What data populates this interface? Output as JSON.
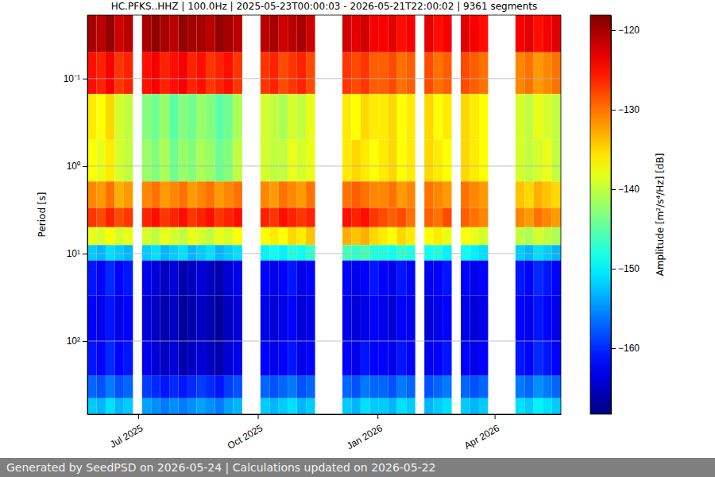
{
  "chart_data": {
    "type": "heatmap",
    "title": "HC.PFKS..HHZ | 100.0Hz | 2025-05-23T00:00:03 - 2026-05-21T22:00:02 | 9361 segments",
    "ylabel": "Period [s]",
    "footer": "Generated by SeedPSD on 2026-05-24 | Calculations updated on 2026-05-22",
    "log": "y",
    "grid": "y",
    "xlim": [
      "2025-05-23T00:00:03",
      "2026-05-21T22:00:02"
    ],
    "xticks": [
      {
        "value": "2025-07-01",
        "label": "Jul 2025"
      },
      {
        "value": "2025-10-01",
        "label": "Oct 2025"
      },
      {
        "value": "2026-01-01",
        "label": "Jan 2026"
      },
      {
        "value": "2026-04-01",
        "label": "Apr 2026"
      }
    ],
    "ylim": [
      0.0188,
      686
    ],
    "yticks": [
      {
        "value": 0.1,
        "label": "10⁻¹"
      },
      {
        "value": 1,
        "label": "10⁰"
      },
      {
        "value": 10,
        "label": "10¹"
      },
      {
        "value": 100,
        "label": "10²"
      }
    ],
    "time_bins": [
      "2025-05-23T00:00:03",
      "2025-05-30",
      "2025-06-06",
      "2025-06-13",
      "2025-06-20",
      "2025-06-27",
      "2025-07-04",
      "2025-07-11",
      "2025-07-18",
      "2025-07-25",
      "2025-08-01",
      "2025-08-08",
      "2025-08-15",
      "2025-08-22",
      "2025-08-29",
      "2025-09-05",
      "2025-09-12",
      "2025-09-19",
      "2025-09-26",
      "2025-10-03",
      "2025-10-10",
      "2025-10-17",
      "2025-10-24",
      "2025-10-31",
      "2025-11-07",
      "2025-11-14",
      "2025-11-21",
      "2025-11-28",
      "2025-12-05",
      "2025-12-12",
      "2025-12-19",
      "2025-12-26",
      "2026-01-02",
      "2026-01-09",
      "2026-01-16",
      "2026-01-23",
      "2026-01-30",
      "2026-02-06",
      "2026-02-13",
      "2026-02-20",
      "2026-02-27",
      "2026-03-06",
      "2026-03-13",
      "2026-03-20",
      "2026-03-27",
      "2026-04-03",
      "2026-04-10",
      "2026-04-17",
      "2026-04-24",
      "2026-05-01",
      "2026-05-08",
      "2026-05-15",
      "2026-05-21T22:00:02"
    ],
    "period_bins": [
      0.0188,
      0.05,
      0.15,
      0.5,
      1.5,
      3,
      5,
      8,
      12,
      30,
      100,
      250,
      450,
      686
    ],
    "values": [
      [
        -120,
        -121,
        -119,
        -122,
        -121,
        null,
        -120,
        -119,
        -120,
        -121,
        -119,
        -120,
        -120,
        -121,
        -119,
        -120,
        -121,
        null,
        null,
        -121,
        -120,
        -122,
        -121,
        -120,
        -122,
        null,
        null,
        null,
        -122,
        -123,
        -122,
        -124,
        -124,
        -123,
        -125,
        -124,
        null,
        -123,
        -125,
        -124,
        null,
        -123,
        -124,
        -125,
        null,
        null,
        null,
        -124,
        -123,
        -125,
        -124,
        -123
      ],
      [
        -125,
        -126,
        -124,
        -127,
        -126,
        null,
        -125,
        -124,
        -126,
        -125,
        -124,
        -126,
        -125,
        -127,
        -126,
        -125,
        -127,
        null,
        null,
        -127,
        -126,
        -128,
        -127,
        -126,
        -128,
        null,
        null,
        null,
        -127,
        -128,
        -127,
        -129,
        -129,
        -128,
        -130,
        -129,
        null,
        -128,
        -130,
        -129,
        null,
        -128,
        -129,
        -130,
        null,
        null,
        null,
        -131,
        -130,
        -132,
        -131,
        -130
      ],
      [
        -136,
        -137,
        -135,
        -139,
        -140,
        null,
        -143,
        -144,
        -142,
        -145,
        -143,
        -144,
        -142,
        -143,
        -145,
        -144,
        -141,
        null,
        null,
        -139,
        -140,
        -141,
        -139,
        -140,
        -138,
        null,
        null,
        null,
        -136,
        -137,
        -135,
        -136,
        -136,
        -135,
        -137,
        -136,
        null,
        -135,
        -137,
        -136,
        null,
        -135,
        -136,
        -137,
        null,
        null,
        null,
        -139,
        -140,
        -138,
        -139,
        -140
      ],
      [
        -137,
        -138,
        -136,
        -139,
        -140,
        null,
        -142,
        -143,
        -141,
        -144,
        -142,
        -143,
        -141,
        -142,
        -144,
        -143,
        -140,
        null,
        null,
        -139,
        -140,
        -140,
        -138,
        -139,
        -138,
        null,
        null,
        null,
        -136,
        -135,
        -136,
        -137,
        -136,
        -135,
        -137,
        -136,
        null,
        -135,
        -136,
        -137,
        null,
        -135,
        -136,
        -137,
        null,
        null,
        null,
        -139,
        -140,
        -139,
        -138,
        -140
      ],
      [
        -131,
        -132,
        -130,
        -133,
        -132,
        null,
        -131,
        -130,
        -132,
        -131,
        -130,
        -132,
        -131,
        -130,
        -132,
        -131,
        -130,
        null,
        null,
        -131,
        -132,
        -130,
        -131,
        -132,
        -130,
        null,
        null,
        null,
        -130,
        -129,
        -130,
        -131,
        -131,
        -130,
        -132,
        -131,
        null,
        -130,
        -131,
        -132,
        null,
        -130,
        -131,
        -132,
        null,
        null,
        null,
        -134,
        -135,
        -133,
        -134,
        -135
      ],
      [
        -127,
        -128,
        -126,
        -128,
        -127,
        null,
        -126,
        -125,
        -127,
        -126,
        -125,
        -127,
        -126,
        -125,
        -127,
        -126,
        -125,
        null,
        null,
        -126,
        -127,
        -125,
        -126,
        -127,
        -126,
        null,
        null,
        null,
        -125,
        -126,
        -125,
        -127,
        -128,
        -129,
        -128,
        -130,
        null,
        -129,
        -130,
        -128,
        null,
        -129,
        -130,
        -131,
        null,
        null,
        null,
        -131,
        -132,
        -130,
        -131,
        -132
      ],
      [
        -138,
        -139,
        -137,
        -139,
        -138,
        null,
        -139,
        -140,
        -138,
        -139,
        -140,
        -138,
        -139,
        -140,
        -138,
        -139,
        -137,
        null,
        null,
        -137,
        -136,
        -137,
        -135,
        -136,
        -134,
        null,
        null,
        null,
        -133,
        -134,
        -133,
        -135,
        -136,
        -137,
        -135,
        -136,
        null,
        -137,
        -136,
        -138,
        null,
        -137,
        -138,
        -139,
        null,
        null,
        null,
        -140,
        -141,
        -139,
        -140,
        -141
      ],
      [
        -152,
        -153,
        -151,
        -152,
        -153,
        null,
        -152,
        -151,
        -153,
        -152,
        -151,
        -153,
        -152,
        -151,
        -153,
        -152,
        -151,
        null,
        null,
        -150,
        -149,
        -150,
        -148,
        -149,
        -147,
        null,
        null,
        null,
        -146,
        -147,
        -146,
        -148,
        -148,
        -149,
        -147,
        -148,
        null,
        -149,
        -148,
        -150,
        null,
        -149,
        -150,
        -151,
        null,
        null,
        null,
        -152,
        -153,
        -151,
        -152,
        -153
      ],
      [
        -161,
        -162,
        -160,
        -162,
        -161,
        null,
        -163,
        -164,
        -165,
        -164,
        -166,
        -165,
        -164,
        -165,
        -166,
        -164,
        -163,
        null,
        null,
        -162,
        -163,
        -162,
        -161,
        -163,
        -162,
        null,
        null,
        null,
        -162,
        -163,
        -162,
        -161,
        -162,
        -163,
        -161,
        -162,
        null,
        -163,
        -162,
        -161,
        null,
        -162,
        -163,
        -162,
        null,
        null,
        null,
        -161,
        -162,
        -160,
        -161,
        -162
      ],
      [
        -162,
        -163,
        -161,
        -163,
        -162,
        null,
        -164,
        -165,
        -166,
        -165,
        -167,
        -166,
        -165,
        -166,
        -167,
        -165,
        -164,
        null,
        null,
        -163,
        -164,
        -163,
        -162,
        -164,
        -163,
        null,
        null,
        null,
        -163,
        -164,
        -163,
        -162,
        -163,
        -164,
        -162,
        -163,
        null,
        -164,
        -163,
        -162,
        null,
        -163,
        -164,
        -163,
        null,
        null,
        null,
        -162,
        -163,
        -161,
        -162,
        -163
      ],
      [
        -161,
        -162,
        -160,
        -162,
        -161,
        null,
        -163,
        -164,
        -165,
        -164,
        -166,
        -165,
        -164,
        -165,
        -166,
        -164,
        -163,
        null,
        null,
        -162,
        -163,
        -162,
        -161,
        -163,
        -162,
        null,
        null,
        null,
        -162,
        -163,
        -161,
        -162,
        -162,
        -163,
        -161,
        -162,
        null,
        -163,
        -162,
        -161,
        null,
        -162,
        -163,
        -162,
        null,
        null,
        null,
        -161,
        -162,
        -160,
        -161,
        -162
      ],
      [
        -157,
        -158,
        -156,
        -158,
        -157,
        null,
        -159,
        -160,
        -161,
        -160,
        -161,
        -160,
        -159,
        -160,
        -161,
        -159,
        -158,
        null,
        null,
        -157,
        -158,
        -157,
        -156,
        -158,
        -157,
        null,
        null,
        null,
        -157,
        -158,
        -156,
        -157,
        -157,
        -158,
        -156,
        -157,
        null,
        -158,
        -157,
        -156,
        null,
        -157,
        -158,
        -157,
        null,
        null,
        null,
        -156,
        -157,
        -155,
        -156,
        -157
      ],
      [
        -152,
        -153,
        -151,
        -153,
        -152,
        null,
        -154,
        -155,
        -156,
        -155,
        -156,
        -155,
        -154,
        -155,
        -156,
        -154,
        -153,
        null,
        null,
        -152,
        -153,
        -152,
        -151,
        -153,
        -152,
        null,
        null,
        null,
        -152,
        -153,
        -151,
        -152,
        -152,
        -153,
        -151,
        -152,
        null,
        -153,
        -152,
        -151,
        null,
        -152,
        -153,
        -152,
        null,
        null,
        null,
        -151,
        -152,
        -150,
        -151,
        -152
      ]
    ],
    "colorbar": {
      "label": "Amplitude [m²/s⁴/Hz] [dB]",
      "lim": [
        -168.3,
        -118.1
      ],
      "ticks": [
        {
          "value": -160,
          "label": "−160"
        },
        {
          "value": -150,
          "label": "−150"
        },
        {
          "value": -140,
          "label": "−140"
        },
        {
          "value": -130,
          "label": "−130"
        },
        {
          "value": -120,
          "label": "−120"
        }
      ]
    }
  }
}
